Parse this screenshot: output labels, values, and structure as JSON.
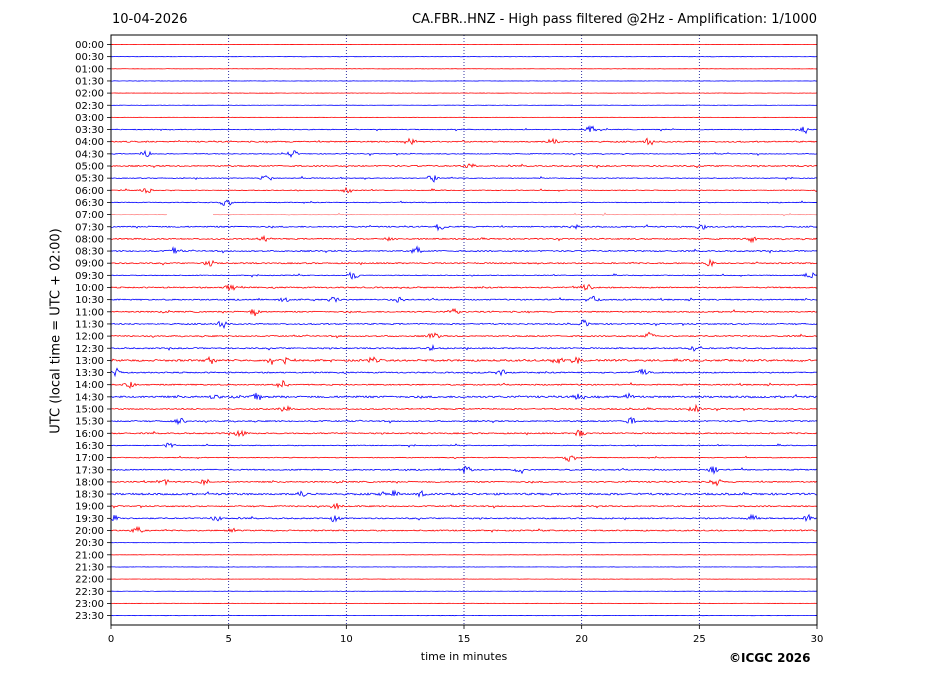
{
  "header": {
    "date": "10-04-2026",
    "title": "CA.FBR..HNZ - High pass filtered @2Hz - Amplification: 1/1000"
  },
  "footer": {
    "copyright": "©ICGC 2026"
  },
  "chart_data": {
    "type": "line",
    "subtype": "helicorder",
    "xlabel": "time in minutes",
    "ylabel": "UTC (local time = UTC + 02:00)",
    "xlim": [
      0,
      30
    ],
    "xticks": [
      0,
      5,
      10,
      15,
      20,
      25,
      30
    ],
    "x_gridlines": [
      5,
      10,
      15,
      20,
      25
    ],
    "grid": "vertical dotted",
    "trace_colors": {
      "even": "#ff0000",
      "odd": "#0000ff"
    },
    "rows": [
      {
        "label": "00:00",
        "activity": "none"
      },
      {
        "label": "00:30",
        "activity": "none"
      },
      {
        "label": "01:00",
        "activity": "none"
      },
      {
        "label": "01:30",
        "activity": "none"
      },
      {
        "label": "02:00",
        "activity": "none"
      },
      {
        "label": "02:30",
        "activity": "none"
      },
      {
        "label": "03:00",
        "activity": "none"
      },
      {
        "label": "03:30",
        "activity": "low",
        "events": [
          20.4,
          29.5
        ]
      },
      {
        "label": "04:00",
        "activity": "medium",
        "events": [
          12.7,
          18.8,
          22.8
        ]
      },
      {
        "label": "04:30",
        "activity": "low",
        "events": [
          1.5,
          7.7
        ]
      },
      {
        "label": "05:00",
        "activity": "medium",
        "events": [
          15.2
        ]
      },
      {
        "label": "05:30",
        "activity": "low",
        "events": [
          6.6,
          13.7
        ]
      },
      {
        "label": "06:00",
        "activity": "low",
        "events": [
          1.5,
          10.0
        ]
      },
      {
        "label": "06:30",
        "activity": "low",
        "events": [
          4.9
        ]
      },
      {
        "label": "07:00",
        "activity": "gap",
        "gaps": [
          [
            2.4,
            4.3
          ]
        ]
      },
      {
        "label": "07:30",
        "activity": "medium",
        "events": [
          14.0,
          19.7,
          25.1
        ]
      },
      {
        "label": "08:00",
        "activity": "medium",
        "events": [
          6.5,
          11.9,
          27.2
        ]
      },
      {
        "label": "08:30",
        "activity": "medium",
        "events": [
          2.7,
          13.0
        ]
      },
      {
        "label": "09:00",
        "activity": "medium",
        "events": [
          4.2,
          25.4
        ]
      },
      {
        "label": "09:30",
        "activity": "low",
        "events": [
          10.3,
          29.7
        ]
      },
      {
        "label": "10:00",
        "activity": "medium",
        "events": [
          5.1,
          20.2
        ]
      },
      {
        "label": "10:30",
        "activity": "medium",
        "events": [
          7.4,
          9.5,
          12.2,
          20.5
        ]
      },
      {
        "label": "11:00",
        "activity": "medium",
        "events": [
          6.1,
          14.6
        ]
      },
      {
        "label": "11:30",
        "activity": "medium",
        "events": [
          4.7,
          20.1
        ]
      },
      {
        "label": "12:00",
        "activity": "medium",
        "events": [
          13.7,
          22.9
        ]
      },
      {
        "label": "12:30",
        "activity": "medium",
        "events": [
          13.7,
          24.8
        ]
      },
      {
        "label": "13:00",
        "activity": "high",
        "events": [
          4.3,
          6.8,
          7.3,
          11.1,
          19.0,
          19.8
        ]
      },
      {
        "label": "13:30",
        "activity": "medium",
        "events": [
          0.2,
          16.6,
          22.6
        ]
      },
      {
        "label": "14:00",
        "activity": "medium",
        "events": [
          0.8,
          7.3
        ]
      },
      {
        "label": "14:30",
        "activity": "high",
        "events": [
          4.4,
          6.2,
          19.9,
          22.0
        ]
      },
      {
        "label": "15:00",
        "activity": "medium",
        "events": [
          7.4,
          24.8
        ]
      },
      {
        "label": "15:30",
        "activity": "medium",
        "events": [
          2.9,
          22.1
        ]
      },
      {
        "label": "16:00",
        "activity": "medium",
        "events": [
          5.5,
          19.9
        ]
      },
      {
        "label": "16:30",
        "activity": "low",
        "events": [
          2.5
        ]
      },
      {
        "label": "17:00",
        "activity": "low",
        "events": [
          19.5
        ]
      },
      {
        "label": "17:30",
        "activity": "medium",
        "events": [
          15.1,
          17.4,
          25.6
        ]
      },
      {
        "label": "18:00",
        "activity": "medium",
        "events": [
          2.2,
          4.0,
          25.7
        ]
      },
      {
        "label": "18:30",
        "activity": "high",
        "events": [
          8.1,
          11.5,
          12.0,
          13.1
        ]
      },
      {
        "label": "19:00",
        "activity": "medium",
        "events": [
          9.6
        ]
      },
      {
        "label": "19:30",
        "activity": "medium",
        "events": [
          0.2,
          4.5,
          9.5,
          27.3,
          29.6
        ]
      },
      {
        "label": "20:00",
        "activity": "medium",
        "events": [
          1.1,
          5.1
        ]
      },
      {
        "label": "20:30",
        "activity": "none"
      },
      {
        "label": "21:00",
        "activity": "none"
      },
      {
        "label": "21:30",
        "activity": "none"
      },
      {
        "label": "22:00",
        "activity": "none"
      },
      {
        "label": "22:30",
        "activity": "none"
      },
      {
        "label": "23:00",
        "activity": "none"
      },
      {
        "label": "23:30",
        "activity": "none"
      }
    ]
  }
}
